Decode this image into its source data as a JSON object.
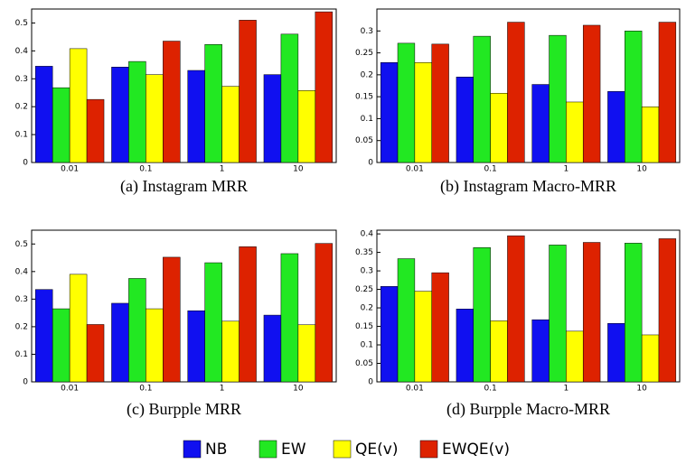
{
  "chart_data": [
    {
      "type": "bar",
      "caption": "(a) Instagram MRR",
      "categories": [
        "0.01",
        "0.1",
        "1",
        "10"
      ],
      "ylim": [
        0,
        0.55
      ],
      "yticks": [
        0,
        0.1,
        0.2,
        0.3,
        0.4,
        0.5
      ],
      "series": [
        {
          "name": "NB",
          "color": "#1010f0",
          "values": [
            0.345,
            0.342,
            0.33,
            0.315
          ]
        },
        {
          "name": "EW",
          "color": "#22e822",
          "values": [
            0.268,
            0.362,
            0.423,
            0.46
          ]
        },
        {
          "name": "QE(v)",
          "color": "#ffff00",
          "values": [
            0.408,
            0.315,
            0.273,
            0.258
          ]
        },
        {
          "name": "EWQE(v)",
          "color": "#dd2200",
          "values": [
            0.226,
            0.435,
            0.51,
            0.54
          ]
        }
      ]
    },
    {
      "type": "bar",
      "caption": "(b) Instagram Macro-MRR",
      "categories": [
        "0.01",
        "0.1",
        "1",
        "10"
      ],
      "ylim": [
        0,
        0.35
      ],
      "yticks": [
        0,
        0.05,
        0.1,
        0.15,
        0.2,
        0.25,
        0.3
      ],
      "series": [
        {
          "name": "NB",
          "color": "#1010f0",
          "values": [
            0.228,
            0.195,
            0.178,
            0.162
          ]
        },
        {
          "name": "EW",
          "color": "#22e822",
          "values": [
            0.272,
            0.288,
            0.29,
            0.3
          ]
        },
        {
          "name": "QE(v)",
          "color": "#ffff00",
          "values": [
            0.228,
            0.158,
            0.138,
            0.127
          ]
        },
        {
          "name": "EWQE(v)",
          "color": "#dd2200",
          "values": [
            0.27,
            0.32,
            0.313,
            0.32
          ]
        }
      ]
    },
    {
      "type": "bar",
      "caption": "(c) Burpple MRR",
      "categories": [
        "0.01",
        "0.1",
        "1",
        "10"
      ],
      "ylim": [
        0,
        0.55
      ],
      "yticks": [
        0,
        0.1,
        0.2,
        0.3,
        0.4,
        0.5
      ],
      "series": [
        {
          "name": "NB",
          "color": "#1010f0",
          "values": [
            0.335,
            0.285,
            0.258,
            0.242
          ]
        },
        {
          "name": "EW",
          "color": "#22e822",
          "values": [
            0.265,
            0.375,
            0.432,
            0.465
          ]
        },
        {
          "name": "QE(v)",
          "color": "#ffff00",
          "values": [
            0.39,
            0.265,
            0.22,
            0.207
          ]
        },
        {
          "name": "EWQE(v)",
          "color": "#dd2200",
          "values": [
            0.208,
            0.452,
            0.49,
            0.502
          ]
        }
      ]
    },
    {
      "type": "bar",
      "caption": "(d) Burpple Macro-MRR",
      "categories": [
        "0.01",
        "0.1",
        "1",
        "10"
      ],
      "ylim": [
        0,
        0.41
      ],
      "yticks": [
        0,
        0.05,
        0.1,
        0.15,
        0.2,
        0.25,
        0.3,
        0.35,
        0.4
      ],
      "series": [
        {
          "name": "NB",
          "color": "#1010f0",
          "values": [
            0.258,
            0.197,
            0.168,
            0.158
          ]
        },
        {
          "name": "EW",
          "color": "#22e822",
          "values": [
            0.333,
            0.363,
            0.37,
            0.375
          ]
        },
        {
          "name": "QE(v)",
          "color": "#ffff00",
          "values": [
            0.245,
            0.165,
            0.137,
            0.127
          ]
        },
        {
          "name": "EWQE(v)",
          "color": "#dd2200",
          "values": [
            0.295,
            0.395,
            0.377,
            0.387
          ]
        }
      ]
    }
  ]
}
